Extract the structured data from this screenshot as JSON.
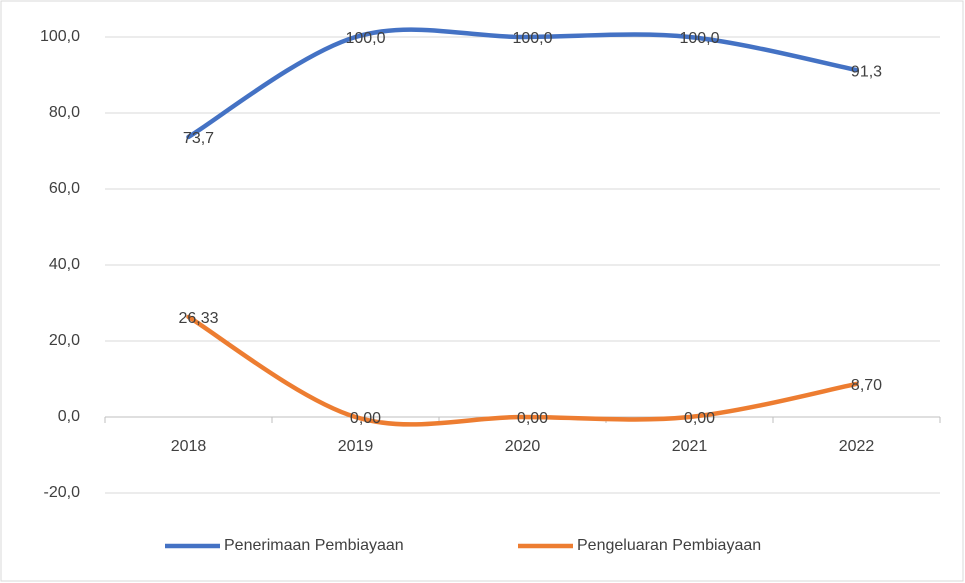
{
  "chart_data": {
    "type": "line",
    "categories": [
      "2018",
      "2019",
      "2020",
      "2021",
      "2022"
    ],
    "series": [
      {
        "name": "Penerimaan Pembiayaan",
        "color": "#4472c4",
        "values": [
          73.7,
          100,
          100,
          100,
          91.3
        ],
        "value_labels": [
          "73,7",
          "100,0",
          "100,0",
          "100,0",
          "91,3"
        ]
      },
      {
        "name": "Pengeluaran Pembiayaan",
        "color": "#ed7d31",
        "values": [
          26.33,
          0,
          0,
          0,
          8.7
        ],
        "value_labels": [
          "26,33",
          "0,00",
          "0,00",
          "0,00",
          "8,70"
        ]
      }
    ],
    "ylim": [
      -20,
      100
    ],
    "yticks": [
      {
        "value": -20,
        "label": "-20,0"
      },
      {
        "value": 0,
        "label": "0,0"
      },
      {
        "value": 20,
        "label": "20,0"
      },
      {
        "value": 40,
        "label": "40,0"
      },
      {
        "value": 60,
        "label": "60,0"
      },
      {
        "value": 80,
        "label": "80,0"
      },
      {
        "value": 100,
        "label": "100,0"
      }
    ],
    "grid": true,
    "smooth": true,
    "legend": "bottom"
  }
}
